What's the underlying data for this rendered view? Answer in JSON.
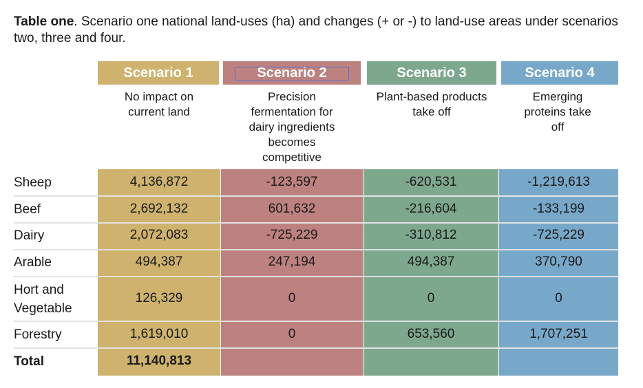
{
  "caption": {
    "label": "Table one",
    "text": ". Scenario one national land-uses (ha) and changes (+ or -) to land-use areas under scenarios two, three and four."
  },
  "colors": {
    "scenario1": "#ceb26d",
    "scenario2": "#bd817f",
    "scenario3": "#7ea88d",
    "scenario4": "#78a8c9"
  },
  "scenarios": [
    {
      "name": "Scenario 1",
      "description": "No impact on current land"
    },
    {
      "name": "Scenario 2",
      "description": "Precision fermentation for dairy ingredients becomes competitive"
    },
    {
      "name": "Scenario 3",
      "description": "Plant-based products take off"
    },
    {
      "name": "Scenario 4",
      "description": "Emerging proteins take off"
    }
  ],
  "rows": [
    {
      "label": "Sheep",
      "values": [
        "4,136,872",
        "-123,597",
        "-620,531",
        "-1,219,613"
      ]
    },
    {
      "label": "Beef",
      "values": [
        "2,692,132",
        "601,632",
        "-216,604",
        "-133,199"
      ]
    },
    {
      "label": "Dairy",
      "values": [
        "2,072,083",
        "-725,229",
        "-310,812",
        "-725,229"
      ]
    },
    {
      "label": "Arable",
      "values": [
        "494,387",
        "247,194",
        "494,387",
        "370,790"
      ]
    },
    {
      "label": "Hort and Vegetable",
      "values": [
        "126,329",
        "0",
        "0",
        "0"
      ]
    },
    {
      "label": "Forestry",
      "values": [
        "1,619,010",
        "0",
        "653,560",
        "1,707,251"
      ]
    },
    {
      "label": "Total",
      "values": [
        "11,140,813",
        "",
        "",
        ""
      ]
    }
  ]
}
